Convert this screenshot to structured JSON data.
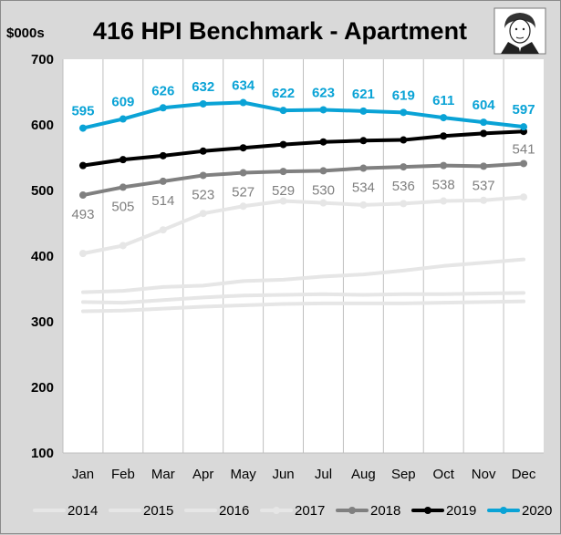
{
  "chart_data": {
    "type": "line",
    "title": "416 HPI Benchmark - Apartment",
    "units_label": "$000s",
    "categories": [
      "Jan",
      "Feb",
      "Mar",
      "Apr",
      "May",
      "Jun",
      "Jul",
      "Aug",
      "Sep",
      "Oct",
      "Nov",
      "Dec"
    ],
    "ylim": [
      100,
      700
    ],
    "yticks": [
      100,
      200,
      300,
      400,
      500,
      600,
      700
    ],
    "grid": "vertical",
    "legend_position": "bottom",
    "series": [
      {
        "name": "2014",
        "color": "#e6e6e6",
        "marker": false,
        "values": [
          316,
          317,
          320,
          323,
          325,
          327,
          328,
          328,
          328,
          329,
          330,
          331
        ]
      },
      {
        "name": "2015",
        "color": "#e6e6e6",
        "marker": false,
        "values": [
          330,
          329,
          333,
          337,
          340,
          341,
          342,
          341,
          342,
          342,
          343,
          344
        ]
      },
      {
        "name": "2016",
        "color": "#e6e6e6",
        "marker": false,
        "values": [
          345,
          347,
          353,
          355,
          362,
          364,
          369,
          372,
          378,
          385,
          390,
          395
        ]
      },
      {
        "name": "2017",
        "color": "#e6e6e6",
        "marker": true,
        "values": [
          404,
          416,
          440,
          465,
          476,
          484,
          481,
          478,
          480,
          484,
          485,
          490
        ]
      },
      {
        "name": "2018",
        "color": "#808080",
        "marker": true,
        "values": [
          493,
          505,
          514,
          523,
          527,
          529,
          530,
          534,
          536,
          538,
          537,
          541
        ]
      },
      {
        "name": "2019",
        "color": "#000000",
        "marker": true,
        "values": [
          538,
          547,
          553,
          560,
          565,
          570,
          574,
          576,
          577,
          583,
          587,
          590
        ]
      },
      {
        "name": "2020",
        "color": "#0aa3d6",
        "marker": true,
        "values": [
          595,
          609,
          626,
          632,
          634,
          622,
          623,
          621,
          619,
          611,
          604,
          597
        ]
      }
    ],
    "data_labels": {
      "2020": [
        "595",
        "609",
        "626",
        "632",
        "634",
        "622",
        "623",
        "621",
        "619",
        "611",
        "604",
        "597"
      ],
      "2018": [
        "493",
        "505",
        "514",
        "523",
        "527",
        "529",
        "530",
        "534",
        "536",
        "538",
        "537",
        "541"
      ]
    }
  },
  "colors": {
    "background": "#d9d9d9",
    "plot_background": "#ffffff",
    "grid": "#bfbfbf",
    "accent_2020": "#0aa3d6",
    "series_2019": "#000000",
    "series_2018": "#808080",
    "series_older": "#e6e6e6"
  },
  "avatar": {
    "icon": "cartoon-portrait-icon"
  }
}
